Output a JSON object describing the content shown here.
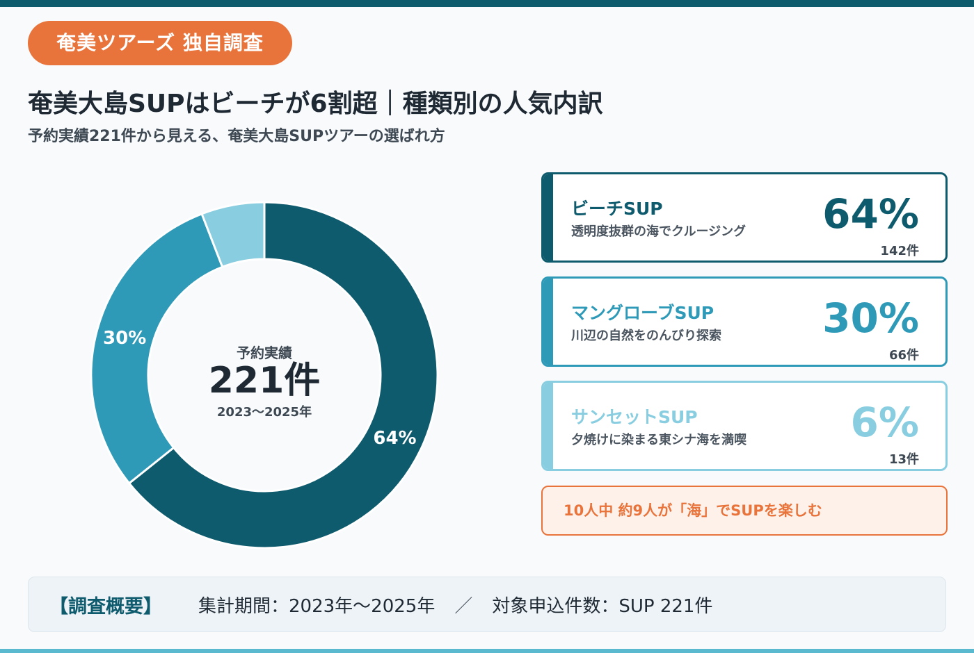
{
  "header": {
    "badge": "奄美ツアーズ 独自調査",
    "title": "奄美大島SUPはビーチが6割超｜種類別の人気内訳",
    "subtitle": "予約実績221件から見える、奄美大島SUPツアーの選ばれ方"
  },
  "chart_data": {
    "type": "pie",
    "donut": true,
    "center_label": "予約実績",
    "center_value": "221件",
    "center_period": "2023〜2025年",
    "total": 221,
    "slices": [
      {
        "label": "ビーチSUP",
        "value": 142,
        "percent_label": "64%",
        "color": "#0f5b6e"
      },
      {
        "label": "マングローブSUP",
        "value": 66,
        "percent_label": "30%",
        "color": "#2e9ab8"
      },
      {
        "label": "サンセットSUP",
        "value": 13,
        "percent_label": "6%",
        "color": "#88cde0"
      }
    ]
  },
  "cards": [
    {
      "name": "ビーチSUP",
      "desc": "透明度抜群の海でクルージング",
      "percent": "64%",
      "count": "142件",
      "color": "#0f5b6e"
    },
    {
      "name": "マングローブSUP",
      "desc": "川辺の自然をのんびり探索",
      "percent": "30%",
      "count": "66件",
      "color": "#2e9ab8"
    },
    {
      "name": "サンセットSUP",
      "desc": "夕焼けに染まる東シナ海を満喫",
      "percent": "6%",
      "count": "13件",
      "color": "#88cde0"
    }
  ],
  "callout": "10人中 約9人が「海」でSUPを楽しむ",
  "summary": {
    "label": "【調査概要】",
    "period": "集計期間：2023年〜2025年",
    "separator": "／",
    "count": "対象申込件数：SUP 221件"
  },
  "colors": {
    "accent": "#e8743b",
    "primary": "#0f5b6e",
    "secondary": "#2e9ab8",
    "tertiary": "#88cde0"
  }
}
